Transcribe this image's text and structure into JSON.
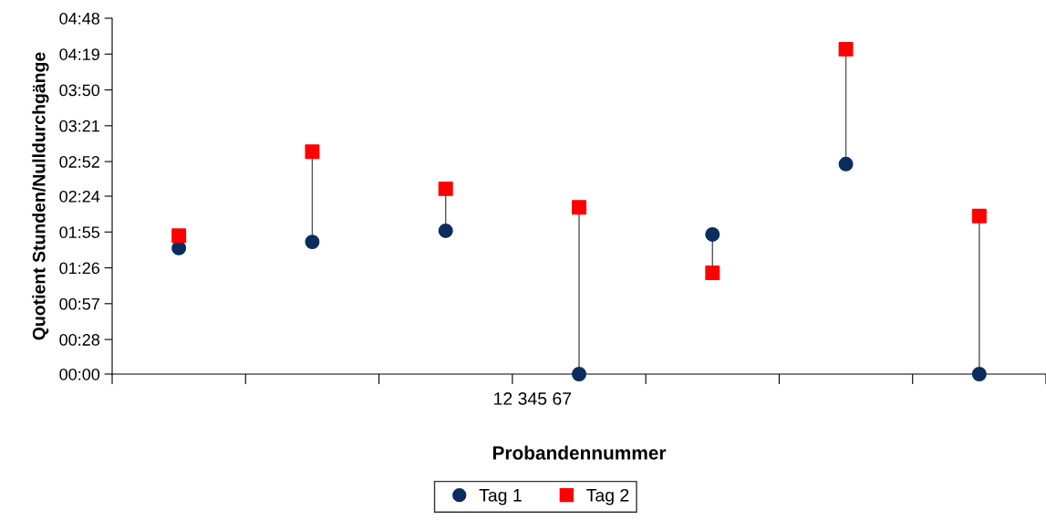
{
  "chart_data": {
    "type": "scatter",
    "ylabel": "Quotient Stunden/Nulldurchgänge",
    "xlabel": "Probandennummer",
    "categories": [
      null,
      null,
      null,
      null,
      null,
      null,
      null
    ],
    "annotations": [
      "12 345 67"
    ],
    "series": [
      {
        "name": "Tag 1",
        "color": "#0b2d5e",
        "marker": "circle",
        "values": [
          102,
          107,
          116,
          0,
          113,
          170,
          0
        ]
      },
      {
        "name": "Tag 2",
        "color": "#ff0000",
        "marker": "square",
        "values": [
          112,
          180,
          150,
          135,
          82,
          263,
          128
        ]
      }
    ],
    "ylim": [
      0,
      288
    ],
    "yticks": [
      {
        "value": 0,
        "label": "00:00"
      },
      {
        "value": 28,
        "label": "00:28"
      },
      {
        "value": 57,
        "label": "00:57"
      },
      {
        "value": 86,
        "label": "01:26"
      },
      {
        "value": 115,
        "label": "01:55"
      },
      {
        "value": 144,
        "label": "02:24"
      },
      {
        "value": 172,
        "label": "02:52"
      },
      {
        "value": 201,
        "label": "03:21"
      },
      {
        "value": 230,
        "label": "03:50"
      },
      {
        "value": 259,
        "label": "04:19"
      },
      {
        "value": 288,
        "label": "04:48"
      }
    ],
    "grid": false,
    "legend": "bottom"
  }
}
